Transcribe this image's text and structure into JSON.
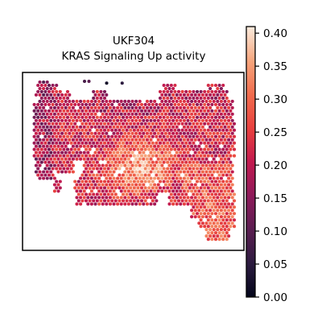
{
  "chart_data": {
    "type": "scatter",
    "subtype": "spatial-transcriptomics-hex-spots",
    "title": "UKF304",
    "subtitle": "KRAS Signaling Up activity",
    "xlabel": "",
    "ylabel": "",
    "axes_visible": false,
    "grid": false,
    "colormap": "rocket",
    "colorbar": {
      "position": "right",
      "vmin": 0.0,
      "vmax": 0.41,
      "ticks": [
        0.0,
        0.05,
        0.1,
        0.15,
        0.2,
        0.25,
        0.3,
        0.35,
        0.4
      ],
      "tick_labels": [
        "0.00",
        "0.05",
        "0.10",
        "0.15",
        "0.20",
        "0.25",
        "0.30",
        "0.35",
        "0.40"
      ]
    },
    "spatial_pattern": {
      "description_regions": [
        {
          "region": "upper band",
          "typical_value": 0.22
        },
        {
          "region": "center-lower",
          "typical_value": 0.33
        },
        {
          "region": "right arm",
          "typical_value": 0.29
        },
        {
          "region": "left edge",
          "typical_value": 0.17
        }
      ],
      "outlier_spots": [
        {
          "x": 0.28,
          "y": 0.95,
          "value": 0.08
        },
        {
          "x": 0.3,
          "y": 0.95,
          "value": 0.1
        },
        {
          "x": 0.38,
          "y": 0.94,
          "value": 0.02
        },
        {
          "x": 0.45,
          "y": 0.94,
          "value": 0.05
        }
      ]
    }
  }
}
